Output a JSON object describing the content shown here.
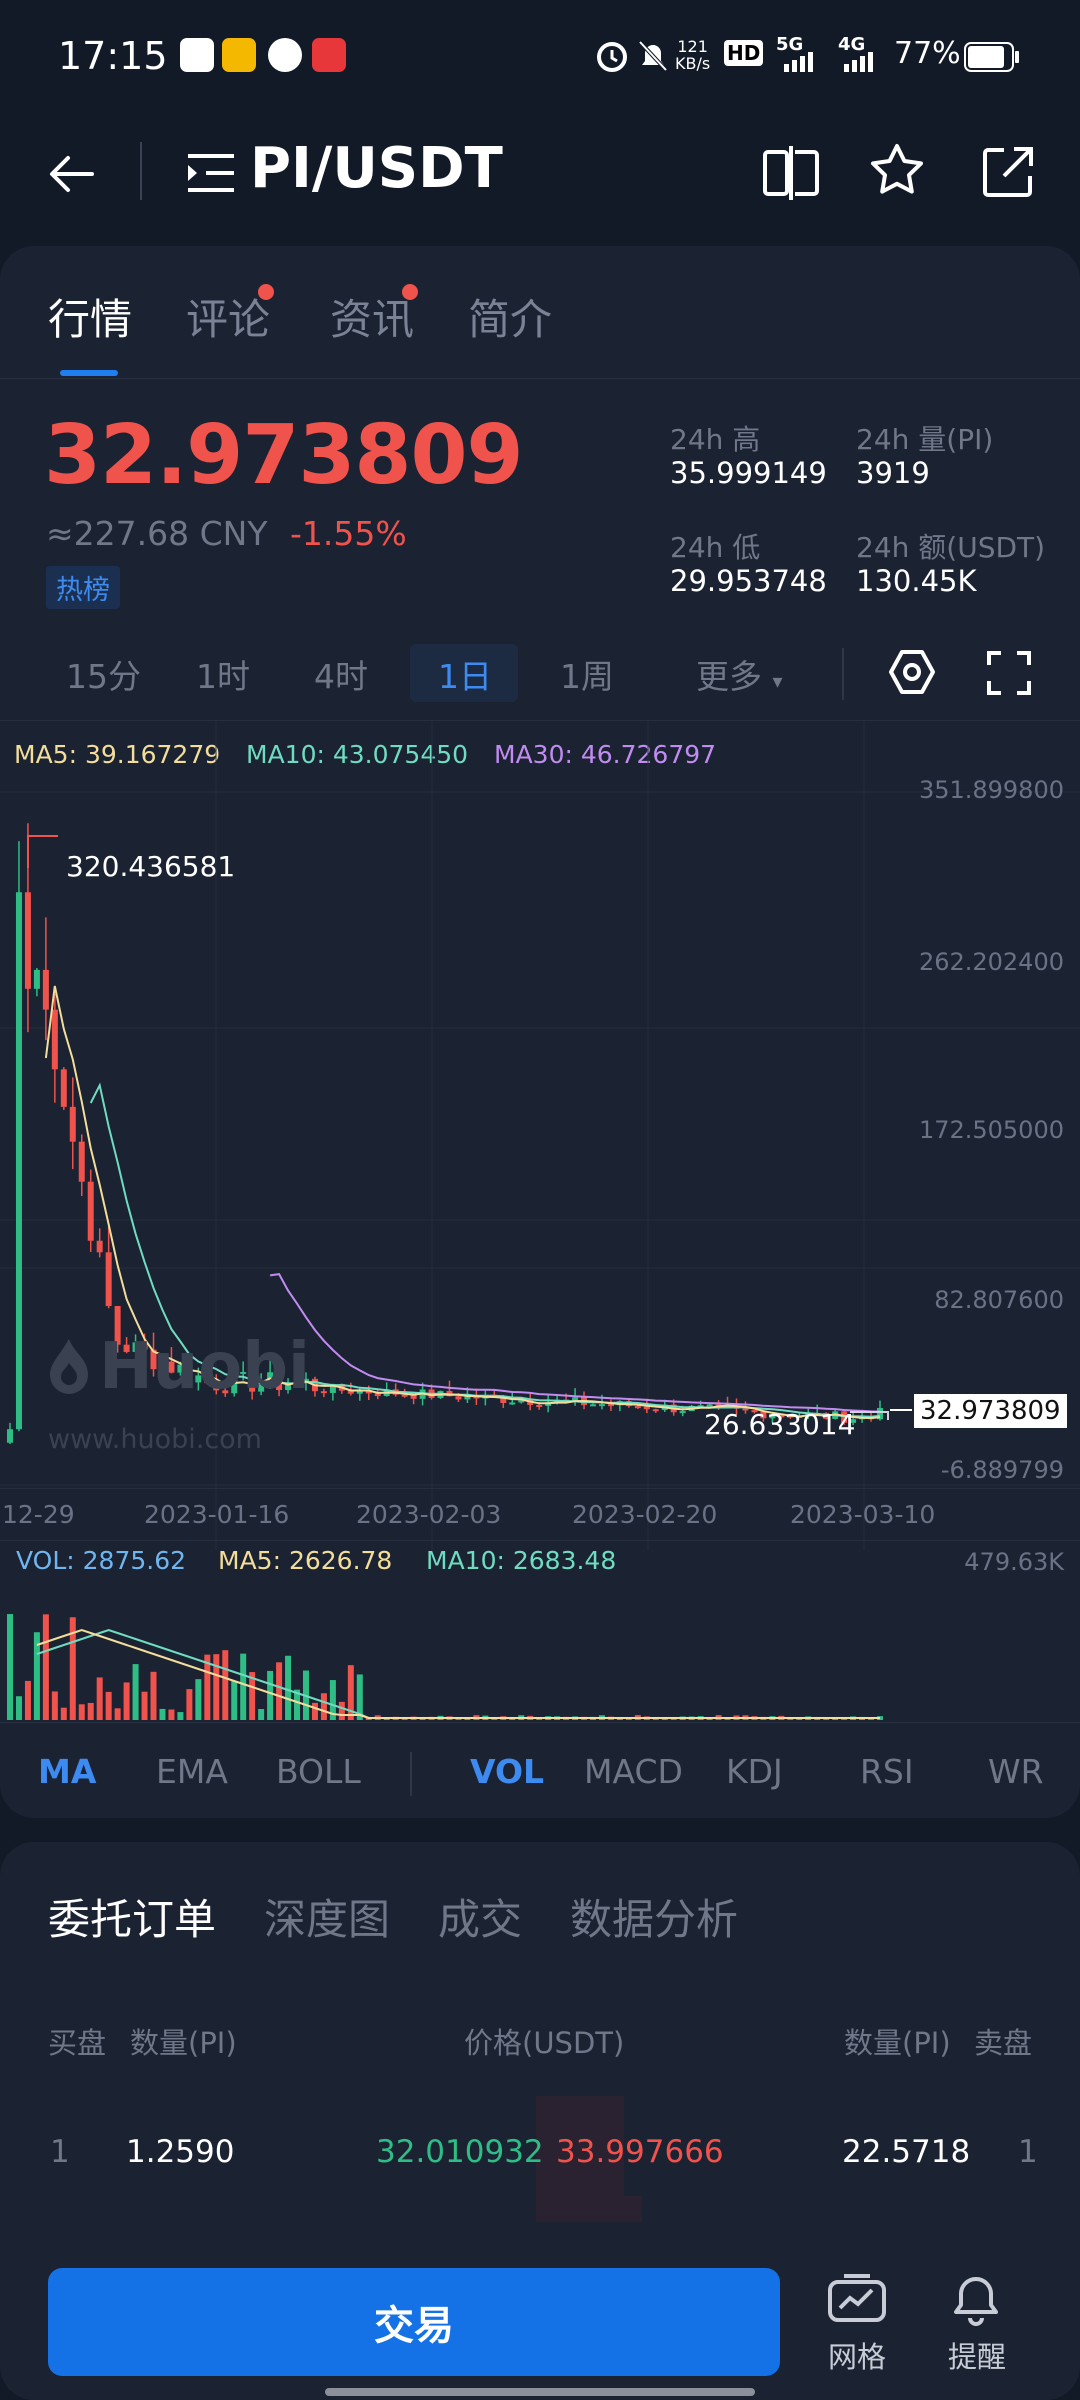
{
  "status_bar": {
    "time": "17:15",
    "net_speed_top": "121",
    "net_speed_unit": "KB/s",
    "hd": "HD",
    "net_5g": "5G",
    "net_4g": "4G",
    "battery": "77%"
  },
  "header": {
    "pair": "PI/USDT"
  },
  "tabs": [
    {
      "label": "行情"
    },
    {
      "label": "评论"
    },
    {
      "label": "资讯"
    },
    {
      "label": "简介"
    }
  ],
  "price": {
    "last": "32.973809",
    "cny": "≈227.68 CNY",
    "change": "-1.55%",
    "badge": "热榜"
  },
  "stats": {
    "high_label": "24h 高",
    "high_value": "35.999149",
    "vol_label": "24h 量(PI)",
    "vol_value": "3919",
    "low_label": "24h 低",
    "low_value": "29.953748",
    "amt_label": "24h 额(USDT)",
    "amt_value": "130.45K"
  },
  "timeframes": [
    "15分",
    "1时",
    "4时",
    "1日",
    "1周",
    "更多"
  ],
  "ma_legend": {
    "ma5": "MA5: 39.167279",
    "ma10": "MA10: 43.075450",
    "ma30": "MA30: 46.726797"
  },
  "y_axis": [
    "351.899800",
    "262.202400",
    "172.505000",
    "82.807600",
    "-6.889799"
  ],
  "x_axis": [
    "12-29",
    "2023-01-16",
    "2023-02-03",
    "2023-02-20",
    "2023-03-10"
  ],
  "chart_annotations": {
    "high": "320.436581",
    "low": "26.633014",
    "last": "32.973809"
  },
  "watermark": {
    "logo": "Huobi",
    "url": "www.huobi.com"
  },
  "vol_legend": {
    "vol": "VOL: 2875.62",
    "ma5": "MA5: 2626.78",
    "ma10": "MA10: 2683.48",
    "max": "479.63K"
  },
  "indicators": [
    "MA",
    "EMA",
    "BOLL",
    "VOL",
    "MACD",
    "KDJ",
    "RSI",
    "WR"
  ],
  "bottom_tabs": [
    "委托订单",
    "深度图",
    "成交",
    "数据分析"
  ],
  "order_header": {
    "buy": "买盘",
    "qty_left": "数量(PI)",
    "price": "价格(USDT)",
    "qty_right": "数量(PI)",
    "sell": "卖盘"
  },
  "order_row": {
    "idx_left": "1",
    "qty_left": "1.2590",
    "bid": "32.010932",
    "ask": "33.997666",
    "qty_right": "22.5718",
    "idx_right": "1"
  },
  "actions": {
    "trade": "交易",
    "grid": "网格",
    "alert": "提醒"
  },
  "colors": {
    "up": "#2ebd85",
    "down": "#f0524c",
    "accent": "#1472e6",
    "ma5": "#f3dd9b",
    "ma10": "#6fdcc1",
    "ma30": "#c18cf0"
  },
  "chart_data": {
    "type": "line",
    "title": "",
    "x": [
      "12-29",
      "2023-01-16",
      "2023-02-03",
      "2023-02-20",
      "2023-03-10"
    ],
    "ylim": [
      -6.889799,
      351.8998
    ],
    "series": [
      {
        "name": "MA5",
        "values": [
          270,
          60,
          42,
          30,
          39.17
        ]
      },
      {
        "name": "MA10",
        "values": [
          150,
          70,
          45,
          32,
          43.08
        ]
      },
      {
        "name": "MA30",
        "values": [
          null,
          null,
          80,
          55,
          46.73
        ]
      }
    ],
    "annotations": [
      "320.436581",
      "26.633014",
      "32.973809"
    ]
  }
}
